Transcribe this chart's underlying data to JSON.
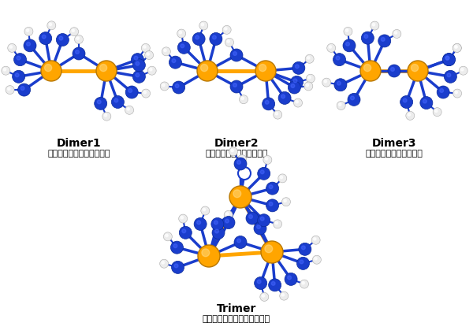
{
  "title": "",
  "background_color": "#ffffff",
  "labels": {
    "dimer1_title": "Dimer1",
    "dimer1_sub": "水酸基一つによる架橋構造",
    "dimer2_title": "Dimer2",
    "dimer2_sub": "水酸基二つによる架橋構造",
    "dimer3_title": "Dimer3",
    "dimer3_sub": "オキソ基による架橋構造",
    "trimer_title": "Trimer",
    "trimer_sub": "オキソ基五つによる架橋構造"
  },
  "colors": {
    "ce": "#FFA500",
    "o": "#1a3dcc",
    "h": "#e8e8e8",
    "bond_o": "#1a3dcc",
    "bond_ce": "#FFA500"
  },
  "fig_width": 6.0,
  "fig_height": 4.24,
  "dpi": 100
}
